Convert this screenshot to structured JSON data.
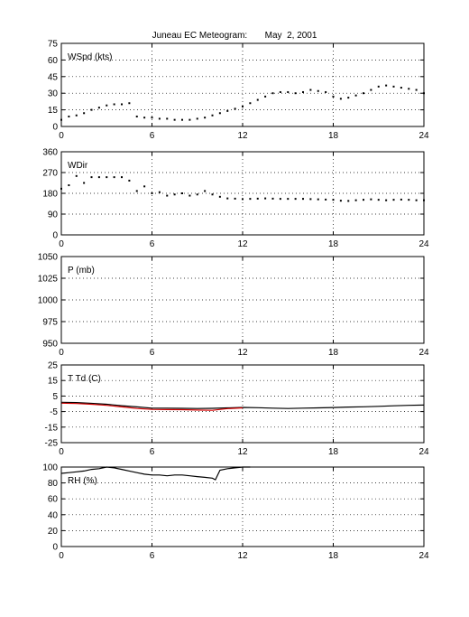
{
  "title": "Juneau EC Meteogram:       May  2, 2001",
  "chart_data": [
    {
      "type": "scatter",
      "label": "WSpd (kts)",
      "ylim": [
        0,
        75
      ],
      "yticks": [
        0,
        15,
        30,
        45,
        60,
        75
      ],
      "xlim": [
        0,
        24
      ],
      "xticks": [
        0,
        6,
        12,
        18,
        24
      ],
      "grid": true,
      "color": "#000000",
      "x": [
        0,
        0.5,
        1,
        1.5,
        2,
        2.5,
        3,
        3.5,
        4,
        4.5,
        5,
        5.5,
        6,
        6.5,
        7,
        7.5,
        8,
        8.5,
        9,
        9.5,
        10,
        10.5,
        11,
        11.5,
        12,
        12.5,
        13,
        13.5,
        14,
        14.5,
        15,
        15.5,
        16,
        16.5,
        17,
        17.5,
        18,
        18.5,
        19,
        19.5,
        20,
        20.5,
        21,
        21.5,
        22,
        22.5,
        23,
        23.5,
        24
      ],
      "values": [
        6,
        9,
        10,
        12,
        15,
        17,
        19,
        20,
        20,
        21,
        9,
        8,
        8,
        7,
        7,
        6,
        6,
        6,
        7,
        8,
        10,
        12,
        14,
        16,
        18,
        21,
        24,
        27,
        30,
        31,
        31,
        30,
        31,
        33,
        32,
        31,
        27,
        25,
        26,
        28,
        30,
        33,
        36,
        37,
        36,
        35,
        34,
        33,
        30
      ]
    },
    {
      "type": "scatter",
      "label": "WDir",
      "ylim": [
        0,
        360
      ],
      "yticks": [
        0,
        90,
        180,
        270,
        360
      ],
      "xlim": [
        0,
        24
      ],
      "xticks": [
        0,
        6,
        12,
        18,
        24
      ],
      "grid": true,
      "color": "#000000",
      "x": [
        0,
        0.5,
        1,
        1.5,
        2,
        2.5,
        3,
        3.5,
        4,
        4.5,
        5,
        5.5,
        6,
        6.5,
        7,
        7.5,
        8,
        8.5,
        9,
        9.5,
        10,
        10.5,
        11,
        11.5,
        12,
        12.5,
        13,
        13.5,
        14,
        14.5,
        15,
        15.5,
        16,
        16.5,
        17,
        17.5,
        18,
        18.5,
        19,
        19.5,
        20,
        20.5,
        21,
        21.5,
        22,
        22.5,
        23,
        23.5,
        24
      ],
      "values": [
        200,
        215,
        255,
        225,
        250,
        250,
        250,
        250,
        250,
        235,
        190,
        210,
        180,
        185,
        170,
        175,
        180,
        170,
        175,
        190,
        175,
        165,
        158,
        157,
        155,
        156,
        157,
        158,
        157,
        156,
        156,
        156,
        156,
        155,
        154,
        153,
        152,
        148,
        147,
        150,
        152,
        154,
        152,
        150,
        152,
        153,
        152,
        150,
        150
      ]
    },
    {
      "type": "scatter",
      "label": "P (mb)",
      "ylim": [
        950,
        1050
      ],
      "yticks": [
        950,
        975,
        1000,
        1025,
        1050
      ],
      "xlim": [
        0,
        24
      ],
      "xticks": [
        0,
        6,
        12,
        18,
        24
      ],
      "grid": true,
      "color": "#000000",
      "x": [],
      "values": []
    },
    {
      "type": "line",
      "label": "T Td (C)",
      "ylim": [
        -25,
        25
      ],
      "yticks": [
        -25,
        -15,
        -5,
        5,
        15,
        25
      ],
      "xlim": [
        0,
        24
      ],
      "xticks": [
        0,
        6,
        12,
        18,
        24
      ],
      "grid": true,
      "series": [
        {
          "color": "#000000",
          "x": [
            0,
            1,
            2,
            3,
            4,
            5,
            6,
            7,
            8,
            9,
            10,
            11,
            12,
            13,
            14,
            15,
            16,
            17,
            18,
            19,
            20,
            21,
            22,
            23,
            24
          ],
          "values": [
            1,
            0.8,
            0.3,
            -0.3,
            -1.2,
            -2,
            -2.8,
            -2.8,
            -2.9,
            -3,
            -2.9,
            -2.6,
            -2.3,
            -2.5,
            -2.8,
            -3,
            -2.8,
            -2.6,
            -2.4,
            -2.1,
            -1.9,
            -1.6,
            -1.3,
            -1,
            -0.8
          ]
        },
        {
          "color": "#d40000",
          "x": [
            0,
            1,
            2,
            3,
            4,
            5,
            6,
            7,
            8,
            9,
            10,
            11,
            12
          ],
          "values": [
            0.4,
            0.2,
            -0.3,
            -1,
            -2,
            -3,
            -3.6,
            -3.7,
            -3.8,
            -4,
            -4.2,
            -3.1,
            -2.6
          ]
        }
      ]
    },
    {
      "type": "line",
      "label": "RH (%)",
      "ylim": [
        0,
        100
      ],
      "yticks": [
        0,
        20,
        40,
        60,
        80,
        100
      ],
      "xlim": [
        0,
        24
      ],
      "xticks": [
        0,
        6,
        12,
        18,
        24
      ],
      "grid": true,
      "series": [
        {
          "color": "#000000",
          "x": [
            0,
            0.5,
            1,
            1.5,
            2,
            2.5,
            3,
            3.5,
            4,
            4.5,
            5,
            5.5,
            6,
            6.5,
            7,
            7.5,
            8,
            8.5,
            9,
            9.5,
            10,
            10.2,
            10.5,
            11,
            11.5,
            12,
            12.5
          ],
          "values": [
            92,
            93,
            94,
            95,
            97,
            98,
            100,
            99,
            97,
            95,
            93,
            91,
            90,
            90,
            89,
            90,
            90,
            89,
            88,
            87,
            86,
            84,
            96,
            98,
            99,
            100,
            100
          ]
        }
      ]
    }
  ]
}
